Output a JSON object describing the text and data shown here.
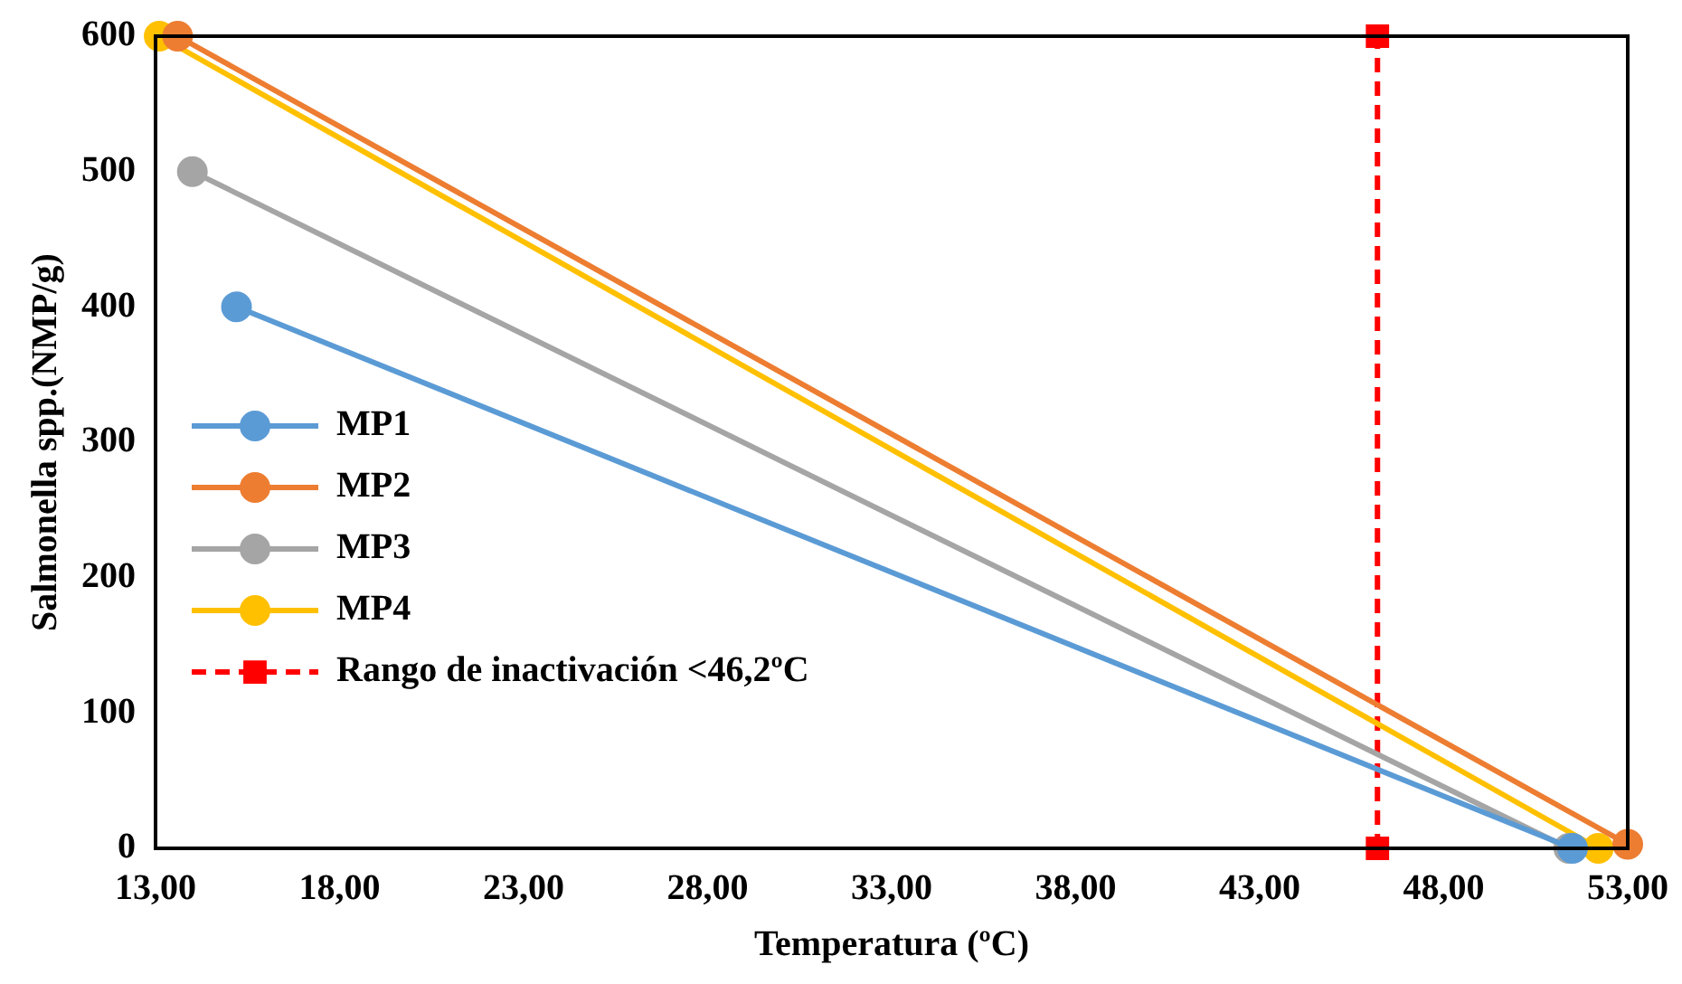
{
  "chart_data": {
    "type": "line",
    "xlabel": "Temperatura (ºC)",
    "ylabel": "Salmonella spp.(NMP/g)",
    "xlim": [
      13,
      53
    ],
    "xticks": [
      {
        "value": 13,
        "label": "13,00"
      },
      {
        "value": 18,
        "label": "18,00"
      },
      {
        "value": 23,
        "label": "23,00"
      },
      {
        "value": 28,
        "label": "28,00"
      },
      {
        "value": 33,
        "label": "33,00"
      },
      {
        "value": 38,
        "label": "38,00"
      },
      {
        "value": 43,
        "label": "43,00"
      },
      {
        "value": 48,
        "label": "48,00"
      },
      {
        "value": 53,
        "label": "53,00"
      }
    ],
    "ylim": [
      0,
      600
    ],
    "yticks": [
      0,
      100,
      200,
      300,
      400,
      500,
      600
    ],
    "grid": false,
    "legend": "left",
    "marker": "circle",
    "line_style": "solid",
    "series": [
      {
        "name": "MP1",
        "color": "#5b9bd5",
        "x": [
          15.2,
          51.5
        ],
        "values": [
          400,
          0
        ]
      },
      {
        "name": "MP2",
        "color": "#ed7d31",
        "x": [
          13.6,
          53
        ],
        "values": [
          600,
          3
        ]
      },
      {
        "name": "MP3",
        "color": "#a5a5a5",
        "x": [
          14,
          51.4
        ],
        "values": [
          500,
          0
        ]
      },
      {
        "name": "MP4",
        "color": "#ffc000",
        "x": [
          13.1,
          52.2
        ],
        "values": [
          600,
          0
        ]
      },
      {
        "name": "Rango de inactivación <46,2ºC",
        "color": "#ff0000",
        "x": [
          46.2,
          46.2
        ],
        "values": [
          0,
          600
        ],
        "marker": "square",
        "line_style": "dashed"
      }
    ]
  }
}
